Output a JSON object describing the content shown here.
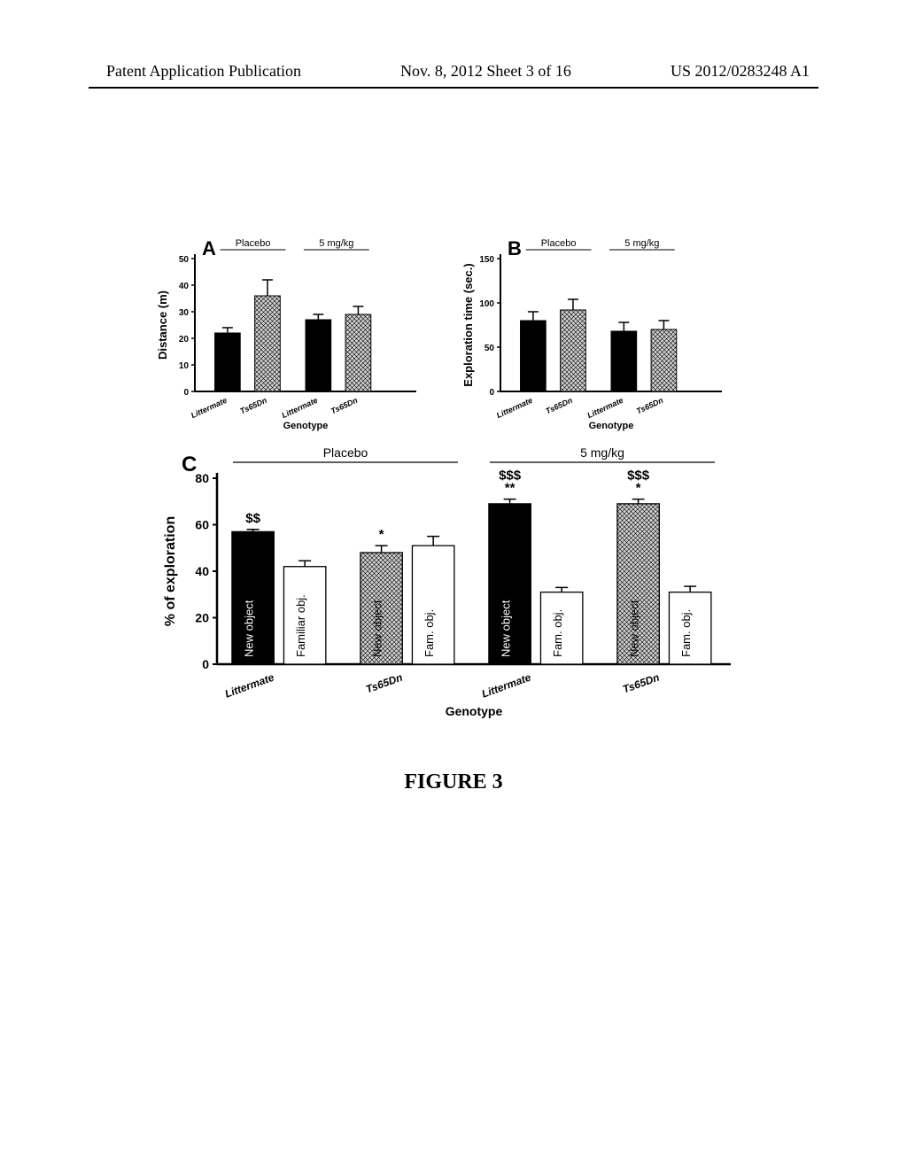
{
  "header": {
    "left": "Patent Application Publication",
    "center": "Nov. 8, 2012  Sheet 3 of 16",
    "right": "US 2012/0283248 A1"
  },
  "caption": "FIGURE 3",
  "colors": {
    "black_bar": "#000000",
    "hatch_bar": "#8a8a8a",
    "white_bar": "#ffffff",
    "bar_stroke": "#000000",
    "axis": "#000000",
    "bg": "#ffffff",
    "text_white": "#ffffff",
    "text_black": "#000000"
  },
  "hatch": {
    "pattern_id": "crosshatch",
    "size": 5,
    "stroke": "#000000",
    "bg": "#d0d0d0"
  },
  "panelA": {
    "letter": "A",
    "type": "bar_with_error",
    "ylabel": "Distance (m)",
    "xlabel": "Genotype",
    "ylim": [
      0,
      50
    ],
    "ytick_step": 10,
    "groups": [
      {
        "label": "Placebo",
        "bars": [
          {
            "x": "Littermate",
            "val": 22,
            "err": 2,
            "fill": "black_bar"
          },
          {
            "x": "Ts65Dn",
            "val": 36,
            "err": 6,
            "fill": "hatch_bar"
          }
        ]
      },
      {
        "label": "5 mg/kg",
        "bars": [
          {
            "x": "Littermate",
            "val": 27,
            "err": 2,
            "fill": "black_bar"
          },
          {
            "x": "Ts65Dn",
            "val": 29,
            "err": 3,
            "fill": "hatch_bar"
          }
        ]
      }
    ],
    "bar_width": 0.7,
    "tick_fontsize": 10,
    "label_fontsize": 13
  },
  "panelB": {
    "letter": "B",
    "type": "bar_with_error",
    "ylabel": "Exploration time (sec.)",
    "xlabel": "Genotype",
    "ylim": [
      0,
      150
    ],
    "ytick_step": 50,
    "groups": [
      {
        "label": "Placebo",
        "bars": [
          {
            "x": "Littermate",
            "val": 80,
            "err": 10,
            "fill": "black_bar"
          },
          {
            "x": "Ts65Dn",
            "val": 92,
            "err": 12,
            "fill": "hatch_bar"
          }
        ]
      },
      {
        "label": "5 mg/kg",
        "bars": [
          {
            "x": "Littermate",
            "val": 68,
            "err": 10,
            "fill": "black_bar"
          },
          {
            "x": "Ts65Dn",
            "val": 70,
            "err": 10,
            "fill": "hatch_bar"
          }
        ]
      }
    ],
    "bar_width": 0.7,
    "tick_fontsize": 10,
    "label_fontsize": 13
  },
  "panelC": {
    "letter": "C",
    "type": "grouped_bar_with_error",
    "ylabel": "% of exploration",
    "xlabel": "Genotype",
    "ylim": [
      0,
      80
    ],
    "ytick_step": 20,
    "label_fontsize": 16,
    "tick_fontsize": 12,
    "group_labels": [
      "Placebo",
      "5 mg/kg"
    ],
    "subgroups": [
      {
        "genotype": "Littermate",
        "treatment": "Placebo",
        "bars": [
          {
            "kind": "New object",
            "val": 57,
            "err": 1,
            "fill": "black_bar",
            "text_color": "text_white",
            "sig": "$$"
          },
          {
            "kind": "Familiar obj.",
            "val": 42,
            "err": 2.5,
            "fill": "white_bar",
            "text_color": "text_black",
            "sig": ""
          }
        ]
      },
      {
        "genotype": "Ts65Dn",
        "treatment": "Placebo",
        "bars": [
          {
            "kind": "New object",
            "val": 48,
            "err": 3,
            "fill": "hatch_bar",
            "text_color": "text_black",
            "sig": "*"
          },
          {
            "kind": "Fam. obj.",
            "val": 51,
            "err": 4,
            "fill": "white_bar",
            "text_color": "text_black",
            "sig": ""
          }
        ]
      },
      {
        "genotype": "Littermate",
        "treatment": "5 mg/kg",
        "bars": [
          {
            "kind": "New object",
            "val": 69,
            "err": 2,
            "fill": "black_bar",
            "text_color": "text_white",
            "sig": "$$$\n**"
          },
          {
            "kind": "Fam. obj.",
            "val": 31,
            "err": 2,
            "fill": "white_bar",
            "text_color": "text_black",
            "sig": ""
          }
        ]
      },
      {
        "genotype": "Ts65Dn",
        "treatment": "5 mg/kg",
        "bars": [
          {
            "kind": "New object",
            "val": 69,
            "err": 2,
            "fill": "hatch_bar",
            "text_color": "text_black",
            "sig": "$$$\n*"
          },
          {
            "kind": "Fam. obj.",
            "val": 31,
            "err": 2.5,
            "fill": "white_bar",
            "text_color": "text_black",
            "sig": ""
          }
        ]
      }
    ],
    "bar_width": 0.85
  }
}
